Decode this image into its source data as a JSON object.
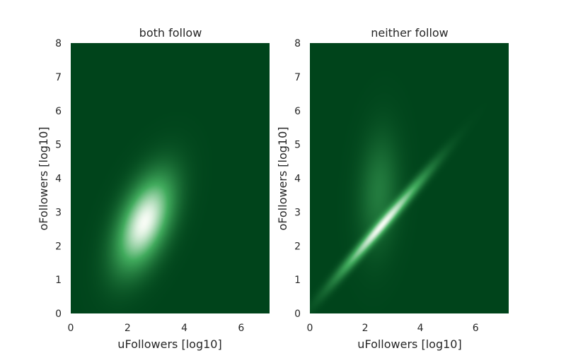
{
  "chart_data": [
    {
      "type": "heatmap",
      "subtype": "2d-density",
      "title": "both follow",
      "xlabel": "uFollowers [log10]",
      "ylabel": "oFollowers [log10]",
      "xlim": [
        0,
        7
      ],
      "ylim": [
        0,
        8
      ],
      "x_ticks": [
        "0",
        "2",
        "4",
        "6"
      ],
      "y_ticks": [
        "0",
        "1",
        "2",
        "3",
        "4",
        "5",
        "6",
        "7",
        "8"
      ],
      "grid": false,
      "colormap": {
        "low": "#00441b",
        "mid": "#41ab5d",
        "high": "#f7fcf5"
      },
      "density_components": [
        {
          "x_mean": 2.6,
          "y_mean": 2.7,
          "x_sd": 0.62,
          "y_sd": 0.85,
          "corr": 0.5,
          "weight": 1.0
        }
      ]
    },
    {
      "type": "heatmap",
      "subtype": "2d-density",
      "title": "neither follow",
      "xlabel": "uFollowers [log10]",
      "ylabel": "oFollowers [log10]",
      "xlim": [
        0,
        7.2
      ],
      "ylim": [
        0,
        8
      ],
      "x_ticks": [
        "0",
        "2",
        "4",
        "6"
      ],
      "y_ticks": [
        "0",
        "1",
        "2",
        "3",
        "4",
        "5",
        "6",
        "7",
        "8"
      ],
      "grid": false,
      "colormap": {
        "low": "#00441b",
        "mid": "#41ab5d",
        "high": "#f7fcf5"
      },
      "density_components": [
        {
          "x_mean": 2.5,
          "y_mean": 3.6,
          "x_sd": 0.45,
          "y_sd": 1.05,
          "corr": 0.15,
          "weight": 0.55
        },
        {
          "x_mean": 2.6,
          "y_mean": 2.6,
          "x_sd": 1.0,
          "y_sd": 0.95,
          "corr": 0.985,
          "weight": 0.9
        }
      ]
    }
  ]
}
